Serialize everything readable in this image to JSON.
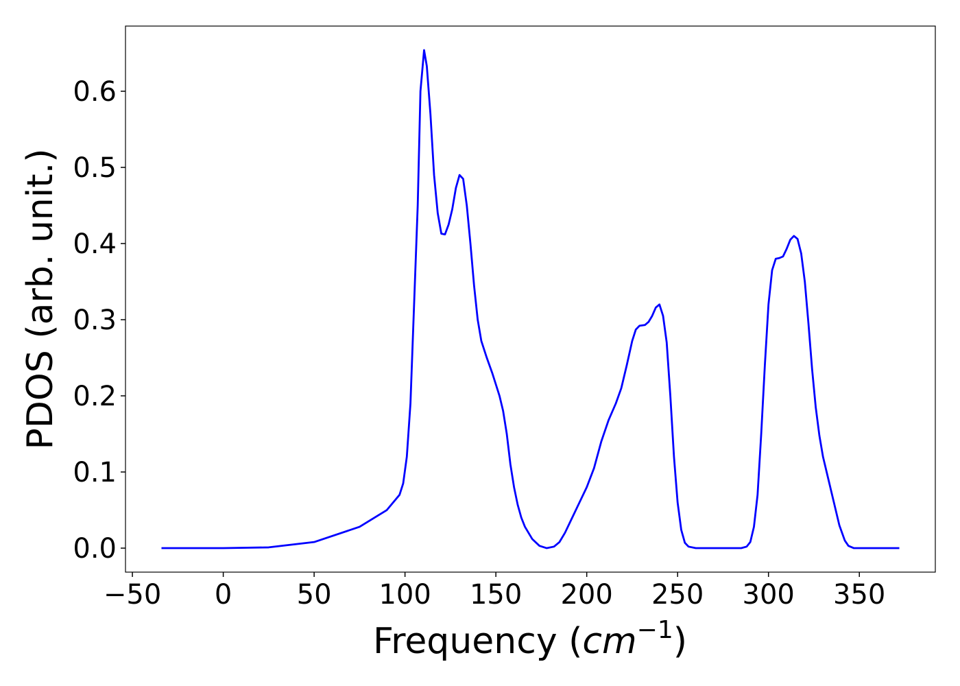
{
  "chart_data": {
    "type": "line",
    "ylabel": "PDOS (arb. unit.)",
    "xlabel": [
      "Frequency (",
      "cm",
      "−1",
      ")"
    ],
    "color": "#0000ff",
    "xlim": [
      -53.8,
      391.8
    ],
    "ylim": [
      -0.0315,
      0.6856
    ],
    "xticks": [
      {
        "value": -50,
        "label": "−50"
      },
      0,
      50,
      100,
      150,
      200,
      250,
      300,
      350
    ],
    "yticks": [
      {
        "value": 0,
        "label": "0.0"
      },
      0.1,
      0.2,
      0.3,
      0.4,
      0.5,
      0.6
    ],
    "x": [
      -34,
      0,
      25,
      50,
      75,
      90,
      97,
      99,
      101,
      103,
      105,
      107,
      108.5,
      110.5,
      112,
      114,
      116,
      118,
      120,
      122,
      124,
      126,
      128,
      130,
      132,
      134,
      136,
      138,
      140,
      142,
      145,
      148,
      150,
      152,
      154,
      156,
      158,
      160,
      162,
      164,
      166,
      170,
      174,
      178,
      182,
      185,
      188,
      192,
      196,
      200,
      204,
      208,
      212,
      216,
      219,
      222,
      225,
      227,
      229,
      232,
      234,
      236,
      238,
      240,
      242,
      244,
      246,
      248,
      250,
      252,
      254,
      256,
      260,
      285,
      288,
      290,
      292,
      294,
      296,
      298,
      300,
      302,
      304,
      306,
      308,
      310,
      312,
      314,
      316,
      318,
      320,
      322,
      324,
      326,
      328,
      330,
      333,
      336,
      339,
      342,
      344,
      347,
      372
    ],
    "values": [
      0,
      0,
      0.001,
      0.008,
      0.028,
      0.05,
      0.07,
      0.085,
      0.12,
      0.19,
      0.32,
      0.45,
      0.6,
      0.654,
      0.633,
      0.57,
      0.49,
      0.44,
      0.413,
      0.412,
      0.425,
      0.445,
      0.473,
      0.49,
      0.485,
      0.45,
      0.4,
      0.345,
      0.3,
      0.272,
      0.25,
      0.23,
      0.215,
      0.2,
      0.18,
      0.15,
      0.11,
      0.08,
      0.057,
      0.04,
      0.028,
      0.012,
      0.003,
      0,
      0.002,
      0.008,
      0.02,
      0.04,
      0.06,
      0.08,
      0.105,
      0.14,
      0.168,
      0.19,
      0.21,
      0.24,
      0.272,
      0.287,
      0.292,
      0.293,
      0.297,
      0.305,
      0.316,
      0.32,
      0.305,
      0.27,
      0.2,
      0.12,
      0.06,
      0.024,
      0.007,
      0.002,
      0,
      0,
      0.002,
      0.008,
      0.028,
      0.07,
      0.15,
      0.24,
      0.32,
      0.365,
      0.38,
      0.381,
      0.383,
      0.393,
      0.405,
      0.41,
      0.406,
      0.387,
      0.35,
      0.295,
      0.235,
      0.185,
      0.148,
      0.12,
      0.09,
      0.06,
      0.03,
      0.01,
      0.003,
      0,
      0
    ]
  }
}
